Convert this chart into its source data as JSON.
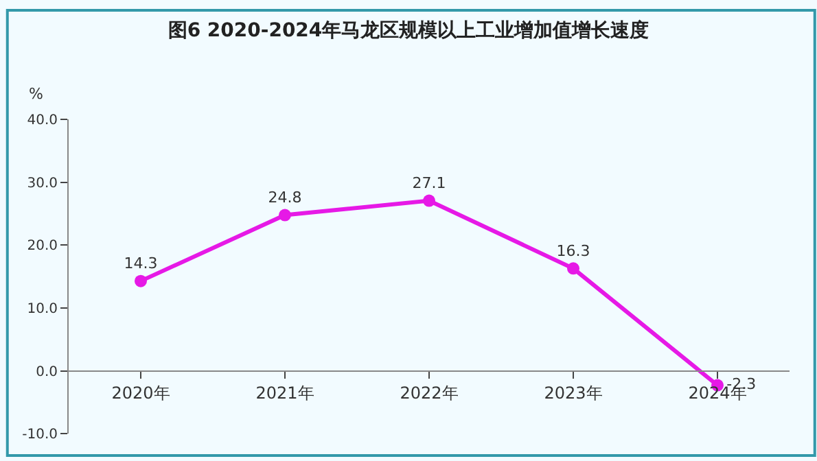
{
  "chart_data": {
    "type": "line",
    "title": "图6 2020-2024年马龙区规模以上工业增加值增长速度",
    "ylabel": "%",
    "categories": [
      "2020年",
      "2021年",
      "2022年",
      "2023年",
      "2024年"
    ],
    "series": [
      {
        "color": "#e619e6",
        "values": [
          14.3,
          24.8,
          27.1,
          16.3,
          -2.3
        ]
      }
    ],
    "ylim": [
      -10,
      40
    ],
    "yticks": [
      {
        "value": -10,
        "label": "-10.0"
      },
      {
        "value": 0,
        "label": "0.0"
      },
      {
        "value": 10,
        "label": "10.0"
      },
      {
        "value": 20,
        "label": "20.0"
      },
      {
        "value": 30,
        "label": "30.0"
      },
      {
        "value": 40,
        "label": "40.0"
      }
    ],
    "data_labels": true,
    "marker": "circle",
    "line_style": "solid",
    "grid": false,
    "legend": false
  }
}
